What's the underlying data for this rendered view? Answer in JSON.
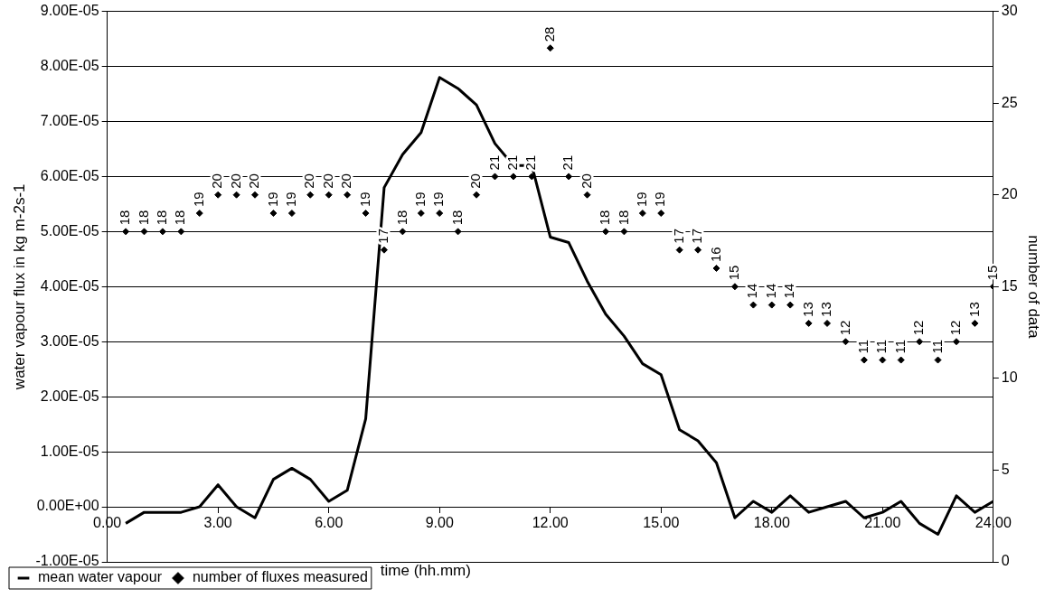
{
  "chart_data": {
    "type": "line",
    "xlabel": "time (hh.mm)",
    "ylabel": "water vapour flux in kg m-2s-1",
    "y2label": "number of data",
    "x": [
      0.5,
      1,
      1.5,
      2,
      2.5,
      3,
      3.5,
      4,
      4.5,
      5,
      5.5,
      6,
      6.5,
      7,
      7.5,
      8,
      8.5,
      9,
      9.5,
      10,
      10.5,
      11,
      11.5,
      12,
      12.5,
      13,
      13.5,
      14,
      14.5,
      15,
      15.5,
      16,
      16.5,
      17,
      17.5,
      18,
      18.5,
      19,
      19.5,
      20,
      20.5,
      21,
      21.5,
      22,
      22.5,
      23,
      23.5,
      24
    ],
    "series": [
      {
        "name": "mean water vapour",
        "type": "line",
        "color": "#000000",
        "marker": "none",
        "line_style": "solid",
        "values": [
          -3e-06,
          -1e-06,
          -1e-06,
          -1e-06,
          0,
          4e-06,
          0,
          -2e-06,
          5e-06,
          7e-06,
          5e-06,
          1e-06,
          3e-06,
          1.6e-05,
          5.8e-05,
          6.4e-05,
          6.8e-05,
          7.8e-05,
          7.6e-05,
          7.3e-05,
          6.6e-05,
          6.2e-05,
          6.2e-05,
          4.9e-05,
          4.8e-05,
          4.1e-05,
          3.5e-05,
          3.1e-05,
          2.6e-05,
          2.4e-05,
          1.4e-05,
          1.2e-05,
          8e-06,
          -2e-06,
          1e-06,
          -1e-06,
          2e-06,
          -1e-06,
          0,
          1e-06,
          -2e-06,
          -1e-06,
          1e-06,
          -3e-06,
          -5e-06,
          2e-06,
          -1e-06,
          1e-06
        ]
      },
      {
        "name": "number of fluxes measured",
        "type": "scatter",
        "axis": "y2",
        "color": "#000000",
        "marker": "diamond",
        "data_labels": true,
        "values": [
          18,
          18,
          18,
          18,
          19,
          20,
          20,
          20,
          19,
          19,
          20,
          20,
          20,
          19,
          17,
          18,
          19,
          19,
          18,
          20,
          21,
          21,
          21,
          28,
          21,
          20,
          18,
          18,
          19,
          19,
          17,
          17,
          16,
          15,
          14,
          14,
          14,
          13,
          13,
          12,
          11,
          11,
          11,
          12,
          11,
          12,
          13,
          15
        ]
      }
    ],
    "xlim": [
      0,
      24
    ],
    "xticks": [
      {
        "value": 0,
        "label": "0.00"
      },
      {
        "value": 3,
        "label": "3.00"
      },
      {
        "value": 6,
        "label": "6.00"
      },
      {
        "value": 9,
        "label": "9.00"
      },
      {
        "value": 12,
        "label": "12.00"
      },
      {
        "value": 15,
        "label": "15.00"
      },
      {
        "value": 18,
        "label": "18.00"
      },
      {
        "value": 21,
        "label": "21.00"
      },
      {
        "value": 24,
        "label": "24.00"
      }
    ],
    "ylim": [
      -1e-05,
      9e-05
    ],
    "yticks": [
      {
        "value": -1e-05,
        "label": "-1.00E-05"
      },
      {
        "value": 0,
        "label": "0.00E+00"
      },
      {
        "value": 1e-05,
        "label": "1.00E-05"
      },
      {
        "value": 2e-05,
        "label": "2.00E-05"
      },
      {
        "value": 3e-05,
        "label": "3.00E-05"
      },
      {
        "value": 4e-05,
        "label": "4.00E-05"
      },
      {
        "value": 5e-05,
        "label": "5.00E-05"
      },
      {
        "value": 6e-05,
        "label": "6.00E-05"
      },
      {
        "value": 7e-05,
        "label": "7.00E-05"
      },
      {
        "value": 8e-05,
        "label": "8.00E-05"
      },
      {
        "value": 9e-05,
        "label": "9.00E-05"
      }
    ],
    "y2lim": [
      0,
      30
    ],
    "y2ticks": [
      0,
      5,
      10,
      15,
      20,
      25,
      30
    ],
    "grid": "y",
    "legend": "bottom left"
  }
}
